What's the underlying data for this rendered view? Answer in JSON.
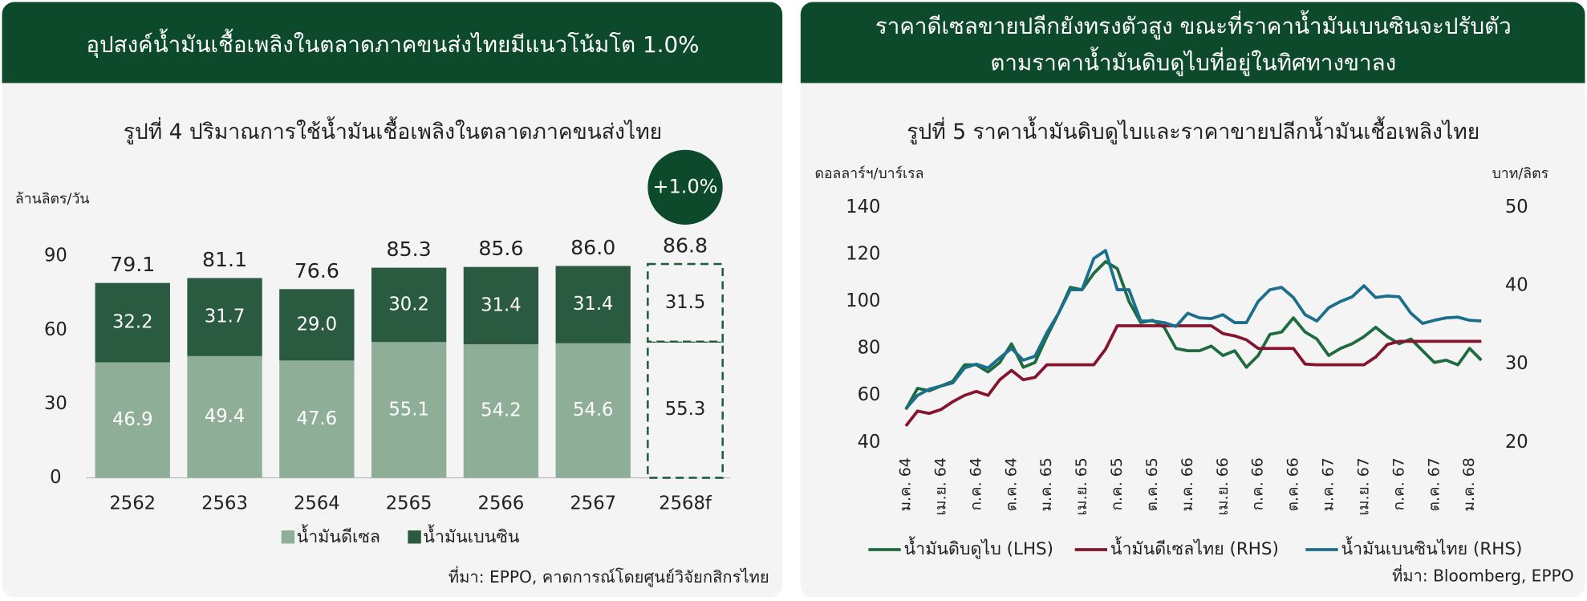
{
  "chart_data": [
    {
      "type": "bar",
      "stacked": true,
      "header": "อุปสงค์น้ำมันเชื้อเพลิงในตลาดภาคขนส่งไทยมีแนวโน้มโต 1.0%",
      "title": "รูปที่ 4 ปริมาณการใช้น้ำมันเชื้อเพลิงในตลาดภาคขนส่งไทย",
      "y_label": "ล้านลิตร/วัน",
      "annotation": "+1.0%",
      "source": "ที่มา: EPPO, คาดการณ์โดยศูนย์วิจัยกสิกรไทย",
      "categories": [
        "2562",
        "2563",
        "2564",
        "2565",
        "2566",
        "2567",
        "2568f"
      ],
      "forecast_from": 6,
      "series": [
        {
          "name": "น้ำมันดีเซล",
          "color": "#8fae98",
          "values": [
            46.9,
            49.4,
            47.6,
            55.1,
            54.2,
            54.6,
            55.3
          ]
        },
        {
          "name": "น้ำมันเบนซิน",
          "color": "#2a5b40",
          "values": [
            32.2,
            31.7,
            29.0,
            30.2,
            31.4,
            31.4,
            31.5
          ],
          "value_labels": [
            "32.2",
            "31.7",
            "29.0",
            "30.2",
            "31.4",
            "31.4",
            "31.5"
          ]
        }
      ],
      "totals": [
        79.1,
        81.1,
        76.6,
        85.3,
        85.6,
        86.0,
        86.8
      ],
      "totals_labels": [
        "79.1",
        "81.1",
        "76.6",
        "85.3",
        "85.6",
        "86.0",
        "86.8"
      ],
      "ylim": [
        0,
        90
      ],
      "yticks": [
        0,
        30,
        60,
        90
      ],
      "grid": false,
      "legend": "bottom"
    },
    {
      "type": "line",
      "header": [
        "ราคาดีเซลขายปลีกยังทรงตัวสูง ขณะที่ราคาน้ำมันเบนซินจะปรับตัว",
        "ตามราคาน้ำมันดิบดูไบที่อยู่ในทิศทางขาลง"
      ],
      "title": "รูปที่ 5 ราคาน้ำมันดิบดูไบและราคาขายปลีกน้ำมันเชื้อเพลิงไทย",
      "y_label": "ดอลลาร์ฯ/บาร์เรล",
      "y2_label": "บาท/ลิตร",
      "source": "ที่มา: Bloomberg, EPPO",
      "categories": [
        "ม.ค. 64",
        null,
        null,
        "เม.ย. 64",
        null,
        null,
        "ก.ค. 64",
        null,
        null,
        "ต.ค. 64",
        null,
        null,
        "ม.ค. 65",
        null,
        null,
        "เม.ย. 65",
        null,
        null,
        "ก.ค. 65",
        null,
        null,
        "ต.ค. 65",
        null,
        null,
        "ม.ค. 66",
        null,
        null,
        "เม.ย. 66",
        null,
        null,
        "ก.ค. 66",
        null,
        null,
        "ต.ค. 66",
        null,
        null,
        "ม.ค. 67",
        null,
        null,
        "เม.ย. 67",
        null,
        null,
        "ก.ค. 67",
        null,
        null,
        "ต.ค. 67",
        null,
        null,
        "ม.ค. 68",
        null
      ],
      "series": [
        {
          "name": "น้ำมันดิบดูไบ (LHS)",
          "color": "#1d6b3e",
          "axis": "y",
          "values": [
            54,
            63,
            62,
            64,
            66,
            73,
            73,
            70,
            74,
            82,
            72,
            74,
            85,
            95,
            106,
            105,
            112,
            117,
            114,
            100,
            91,
            92,
            89,
            80,
            79,
            79,
            81,
            77,
            79,
            72,
            77,
            86,
            87,
            93,
            87,
            84,
            77,
            80,
            82,
            85,
            89,
            85,
            82,
            84,
            79,
            74,
            75,
            73,
            80,
            75
          ]
        },
        {
          "name": "น้ำมันดีเซลไทย (RHS)",
          "color": "#86142e",
          "axis": "y2",
          "values": [
            22.1,
            24,
            23.7,
            24.2,
            25.2,
            26,
            26.5,
            26,
            28,
            29.2,
            28,
            28.3,
            29.9,
            29.9,
            29.9,
            29.9,
            29.9,
            31.9,
            34.9,
            34.9,
            34.9,
            34.9,
            34.9,
            34.9,
            34.9,
            34.9,
            34.9,
            33.9,
            33.6,
            33.1,
            32,
            32,
            32,
            32,
            30,
            29.9,
            29.9,
            29.9,
            29.9,
            29.9,
            30.9,
            32.5,
            32.9,
            32.9,
            32.9,
            32.9,
            32.9,
            32.9,
            32.9,
            32.9
          ]
        },
        {
          "name": "น้ำมันเบนซินไทย (RHS)",
          "color": "#1b6f8c",
          "axis": "y2",
          "values": [
            24.3,
            26,
            26.8,
            27.2,
            27.6,
            29.5,
            30,
            29.5,
            30.8,
            32,
            30.5,
            31,
            34,
            36.5,
            39.5,
            39.5,
            43.5,
            44.5,
            39.5,
            39.5,
            35.5,
            35.5,
            35.3,
            34.8,
            36.5,
            35.9,
            35.8,
            36.3,
            35.3,
            35.3,
            38,
            39.5,
            39.8,
            38.5,
            36.3,
            35.5,
            37.2,
            38,
            38.6,
            40,
            38.5,
            38.7,
            38.6,
            36.5,
            35.2,
            35.6,
            35.9,
            36.0,
            35.6,
            35.5
          ]
        }
      ],
      "ylim": [
        40,
        140
      ],
      "yticks": [
        40,
        60,
        80,
        100,
        120,
        140
      ],
      "y2lim": [
        20,
        50
      ],
      "y2ticks": [
        20,
        30,
        40,
        50
      ],
      "grid": false,
      "legend": "bottom"
    }
  ]
}
